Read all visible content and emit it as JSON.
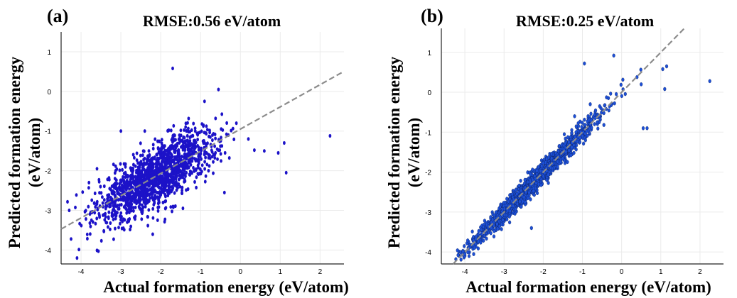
{
  "chart_data": [
    {
      "type": "scatter",
      "panel_label": "(a)",
      "title": "RMSE:0.56 eV/atom",
      "xlabel": "Actual formation energy (eV/atom)",
      "ylabel_line1": "Predicted formation energy",
      "ylabel_line2": "(eV/atom)",
      "xlim": [
        -4.5,
        2.6
      ],
      "ylim": [
        -4.35,
        1.5
      ],
      "x_ticks": [
        -4,
        -3,
        -2,
        -1,
        0,
        1,
        2
      ],
      "y_ticks": [
        -4,
        -3,
        -2,
        -1,
        0,
        1
      ],
      "grid": true,
      "point_color": "#1c12c8",
      "fit_line_color": "#8c8c8c",
      "fit_line": {
        "slope": 0.56,
        "intercept": -0.95
      },
      "cluster": {
        "center_x": -2.1,
        "center_y": -2.12,
        "count": 1500,
        "sd_major": 0.75,
        "sd_noise": 0.38
      },
      "points": [
        {
          "x": -1.7,
          "y": 0.58
        },
        {
          "x": 2.25,
          "y": -1.12
        },
        {
          "x": -4.1,
          "y": -4.2
        },
        {
          "x": -4.25,
          "y": -3.72
        },
        {
          "x": 1.15,
          "y": -2.05
        },
        {
          "x": 0.6,
          "y": -1.5
        },
        {
          "x": 0.95,
          "y": -1.55
        },
        {
          "x": 1.1,
          "y": -1.3
        },
        {
          "x": 0.35,
          "y": -1.48
        },
        {
          "x": -0.55,
          "y": 0.05
        },
        {
          "x": -0.9,
          "y": -0.25
        },
        {
          "x": -3.0,
          "y": -1.0
        },
        {
          "x": -2.4,
          "y": -1.0
        },
        {
          "x": -0.8,
          "y": -2.0
        },
        {
          "x": -0.4,
          "y": -2.55
        },
        {
          "x": -0.3,
          "y": -1.1
        },
        {
          "x": -0.1,
          "y": -0.8
        },
        {
          "x": 0.2,
          "y": -1.2
        },
        {
          "x": -3.6,
          "y": -1.95
        },
        {
          "x": -3.8,
          "y": -2.3
        },
        {
          "x": -2.2,
          "y": -3.6
        }
      ]
    },
    {
      "type": "scatter",
      "panel_label": "(b)",
      "title": "RMSE:0.25 eV/atom",
      "xlabel": "Actual formation energy (eV/atom)",
      "ylabel_line1": "Predicted formation energy",
      "ylabel_line2": "(eV/atom)",
      "xlim": [
        -4.6,
        2.6
      ],
      "ylim": [
        -4.3,
        1.6
      ],
      "x_ticks": [
        -4,
        -3,
        -2,
        -1,
        0,
        1,
        2
      ],
      "y_ticks": [
        -4,
        -3,
        -2,
        -1,
        0,
        1
      ],
      "grid": true,
      "point_color": "#1c4fd6",
      "fit_line_color": "#8c8c8c",
      "fit_line": {
        "slope": 1.0,
        "intercept": 0.0
      },
      "cluster": {
        "center_x": -2.2,
        "center_y": -2.2,
        "count": 1700,
        "sd_major": 0.8,
        "sd_noise": 0.13
      },
      "points": [
        {
          "x": -0.95,
          "y": 0.72
        },
        {
          "x": -0.2,
          "y": 0.92
        },
        {
          "x": 2.25,
          "y": 0.28
        },
        {
          "x": 1.15,
          "y": 0.65
        },
        {
          "x": 1.05,
          "y": 0.58
        },
        {
          "x": 0.5,
          "y": 0.2
        },
        {
          "x": 1.1,
          "y": 0.08
        },
        {
          "x": 0.55,
          "y": -0.9
        },
        {
          "x": 0.65,
          "y": -0.9
        },
        {
          "x": -0.8,
          "y": -0.3
        },
        {
          "x": -2.3,
          "y": -3.4
        },
        {
          "x": -3.9,
          "y": -3.9
        },
        {
          "x": -4.0,
          "y": -4.05
        },
        {
          "x": -1.2,
          "y": -0.6
        }
      ]
    }
  ]
}
